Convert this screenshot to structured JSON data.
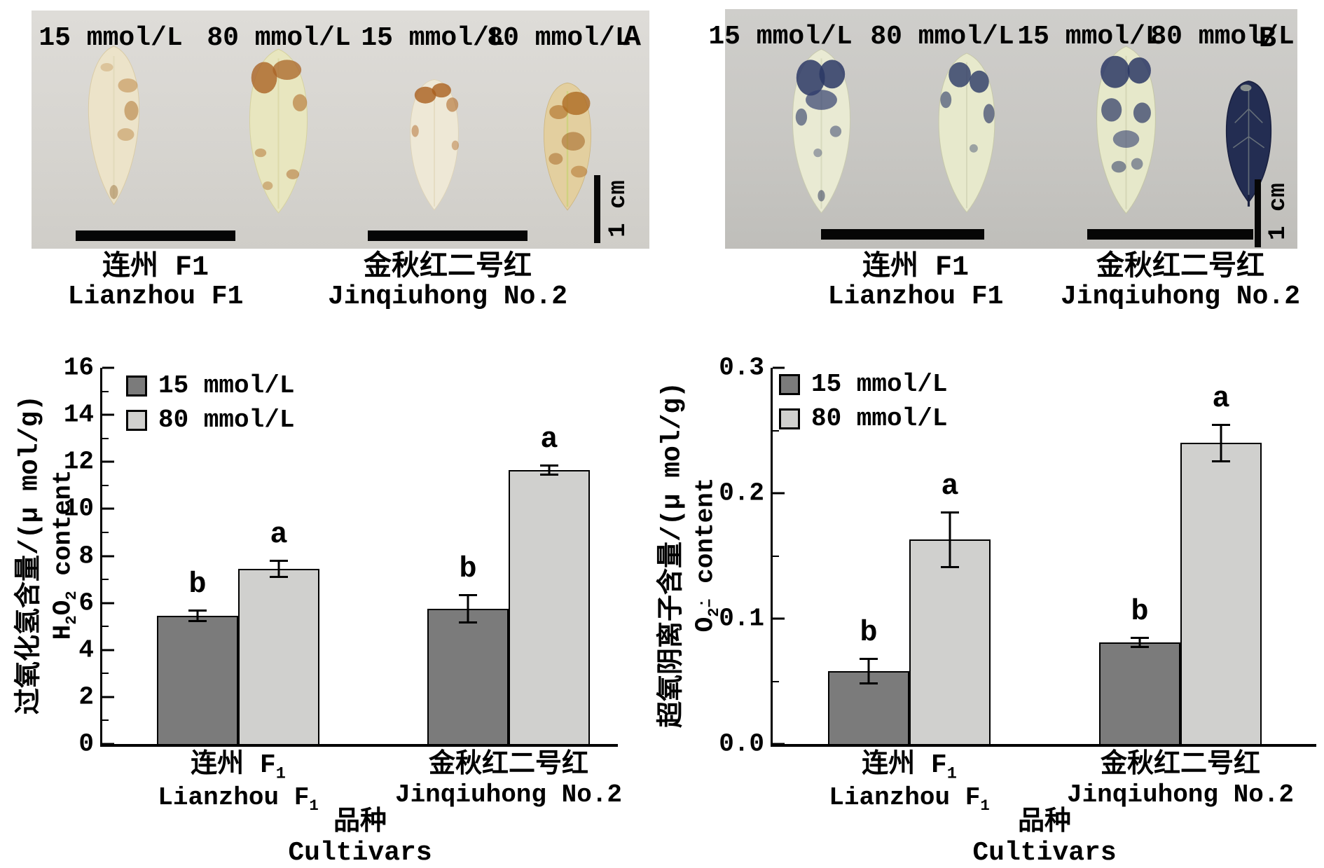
{
  "figure": {
    "photo_panels": [
      {
        "letter": "A",
        "treatments": [
          "15 mmol/L",
          "80 mmol/L",
          "15 mmol/L",
          "80 mmol/L"
        ],
        "scale_label": "1 cm",
        "group_captions": [
          {
            "cn": "连州 F1",
            "en": "Lianzhou F1"
          },
          {
            "cn": "金秋红二号红",
            "en": "Jinqiuhong No.2"
          }
        ]
      },
      {
        "letter": "B",
        "treatments": [
          "15 mmol/L",
          "80 mmol/L",
          "15 mmol/L",
          "80 mmol/L"
        ],
        "scale_label": "1 cm",
        "group_captions": [
          {
            "cn": "连州 F1",
            "en": "Lianzhou F1"
          },
          {
            "cn": "金秋红二号红",
            "en": "Jinqiuhong No.2"
          }
        ]
      }
    ]
  },
  "chart_data": [
    {
      "type": "bar",
      "panel": "bottom-left",
      "title": "",
      "categories": [
        {
          "cn": "连州 F",
          "cn_sub": "1",
          "en": "Lianzhou F",
          "en_sub": "1"
        },
        {
          "cn": "金秋红二号红",
          "cn_sub": "",
          "en": "Jinqiuhong No.2",
          "en_sub": ""
        }
      ],
      "series": [
        {
          "name": "15 mmol/L",
          "color": "#7b7b7b",
          "values": [
            5.45,
            5.75
          ],
          "errors": [
            0.25,
            0.6
          ],
          "letters": [
            "b",
            "b"
          ]
        },
        {
          "name": "80 mmol/L",
          "color": "#d0d0ce",
          "values": [
            7.45,
            11.65
          ],
          "errors": [
            0.35,
            0.2
          ],
          "letters": [
            "a",
            "a"
          ]
        }
      ],
      "ylabel_cn": "过氧化氢含量/(μ mol/g)",
      "ylabel_en_parts": [
        {
          "t": "H"
        },
        {
          "t": "2",
          "sub": true
        },
        {
          "t": "O"
        },
        {
          "t": "2",
          "sub": true
        },
        {
          "t": " content"
        }
      ],
      "xlabel_cn": "品种",
      "xlabel_en": "Cultivars",
      "ylim": [
        0,
        16
      ],
      "grid": false,
      "legend_position": "top-left",
      "y_axis": {
        "major": [
          {
            "value": 0,
            "label": "0"
          },
          {
            "value": 2,
            "label": "2"
          },
          {
            "value": 4,
            "label": "4"
          },
          {
            "value": 6,
            "label": "6"
          },
          {
            "value": 8,
            "label": "8"
          },
          {
            "value": 10,
            "label": "10"
          },
          {
            "value": 12,
            "label": "12"
          },
          {
            "value": 14,
            "label": "14"
          },
          {
            "value": 16,
            "label": "16"
          }
        ],
        "minor": [
          1,
          3,
          5,
          7,
          9,
          11,
          13,
          15
        ]
      }
    },
    {
      "type": "bar",
      "panel": "bottom-right",
      "title": "",
      "categories": [
        {
          "cn": "连州 F",
          "cn_sub": "1",
          "en": "Lianzhou F",
          "en_sub": "1"
        },
        {
          "cn": "金秋红二号红",
          "cn_sub": "",
          "en": "Jinqiuhong No.2",
          "en_sub": ""
        }
      ],
      "series": [
        {
          "name": "15 mmol/L",
          "color": "#7b7b7b",
          "values": [
            0.058,
            0.081
          ],
          "errors": [
            0.01,
            0.004
          ],
          "letters": [
            "b",
            "b"
          ]
        },
        {
          "name": "80 mmol/L",
          "color": "#d0d0ce",
          "values": [
            0.163,
            0.24
          ],
          "errors": [
            0.022,
            0.015
          ],
          "letters": [
            "a",
            "a"
          ]
        }
      ],
      "ylabel_cn": "超氧阴离子含量/(μ mol/g)",
      "ylabel_en_parts": [
        {
          "t": "O"
        },
        {
          "t": "2",
          "sub": true
        },
        {
          "stack": [
            "·",
            "−"
          ]
        },
        {
          "t": " content"
        }
      ],
      "xlabel_cn": "品种",
      "xlabel_en": "Cultivars",
      "ylim": [
        0,
        0.3
      ],
      "grid": false,
      "legend_position": "top-left",
      "y_axis": {
        "major": [
          {
            "value": 0,
            "label": "0.0"
          },
          {
            "value": 0.1,
            "label": "0.1"
          },
          {
            "value": 0.2,
            "label": "0.2"
          },
          {
            "value": 0.3,
            "label": "0.3"
          }
        ],
        "minor": [
          0.05,
          0.15,
          0.25
        ]
      }
    }
  ]
}
